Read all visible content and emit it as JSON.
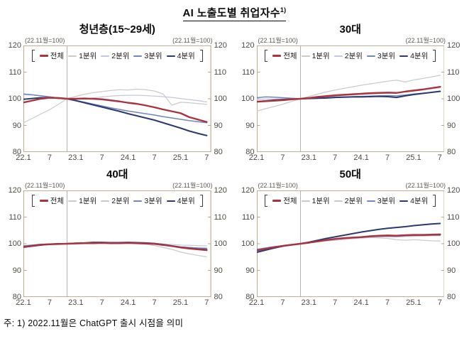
{
  "page_title": {
    "text": "AI 노출도별 취업자수",
    "superscript": "1)"
  },
  "footnote": "주: 1) 2022.11월은 ChatGPT 출시 시점을 의미",
  "colors": {
    "series": [
      "#aa3340",
      "#cbcbcb",
      "#c3c8df",
      "#7286bc",
      "#2c3a70"
    ],
    "frame": "#b7a889",
    "event_line": "#b3b3b3",
    "axis_text": "#4e4a42",
    "note_text": "#5e5a52"
  },
  "chart_data": {
    "type": "line",
    "index_note": "(22.11월=100)",
    "legend": [
      "전체",
      "1분위",
      "2분위",
      "3분위",
      "4분위"
    ],
    "line_widths": [
      2.4,
      1.2,
      1.2,
      1.6,
      2.0
    ],
    "draw_order": [
      1,
      2,
      3,
      4,
      0
    ],
    "x_axis": {
      "months_from_2022_01": [
        0,
        2,
        4,
        6,
        8,
        10,
        12,
        14,
        16,
        18,
        20,
        22,
        24,
        26,
        28,
        30,
        32,
        34,
        36,
        38,
        40,
        42
      ],
      "tick_months": [
        0,
        6,
        12,
        18,
        24,
        30,
        36,
        42
      ],
      "tick_labels": [
        "22.1",
        "7",
        "23.1",
        "7",
        "24.1",
        "7",
        "25.1",
        "7"
      ],
      "domain_max_month": 43
    },
    "y_axis": {
      "min": 80,
      "max": 120,
      "ticks": [
        120,
        110,
        100,
        90,
        80
      ]
    },
    "event_line": {
      "month": 10
    },
    "panels": [
      {
        "title": "청년층(15~29세)",
        "series": [
          {
            "name": "전체",
            "values": [
              98.6,
              99.3,
              100.0,
              100.4,
              100.3,
              100,
              100.0,
              100.1,
              100.0,
              99.8,
              99.4,
              99.0,
              98.5,
              98.1,
              97.5,
              96.8,
              96.0,
              95.3,
              94.6,
              93.1,
              92.2,
              91.3
            ]
          },
          {
            "name": "1분위",
            "values": [
              91.0,
              92.6,
              94.3,
              95.9,
              97.9,
              100,
              100.9,
              101.7,
              102.3,
              102.7,
              103.1,
              103.4,
              103.3,
              103.6,
              103.4,
              102.9,
              101.8,
              97.6,
              98.7,
              98.5,
              98.2,
              97.9
            ]
          },
          {
            "name": "2분위",
            "values": [
              101.5,
              101.4,
              101.2,
              100.8,
              100.3,
              100,
              99.8,
              100.0,
              100.3,
              100.7,
              101.0,
              101.2,
              101.3,
              101.3,
              101.2,
              101.0,
              100.8,
              100.5,
              100.1,
              99.7,
              99.3,
              98.8
            ]
          },
          {
            "name": "3분위",
            "values": [
              101.8,
              101.5,
              101.1,
              100.7,
              100.3,
              100,
              99.4,
              98.7,
              98.0,
              97.3,
              96.6,
              96.0,
              95.4,
              94.9,
              94.4,
              93.9,
              93.3,
              92.8,
              92.3,
              91.8,
              91.4,
              91.0
            ]
          },
          {
            "name": "4분위",
            "values": [
              99.8,
              100.1,
              100.4,
              100.4,
              100.2,
              100,
              99.3,
              98.5,
              97.7,
              96.9,
              96.1,
              95.3,
              94.4,
              93.6,
              92.8,
              92.0,
              91.0,
              90.0,
              89.0,
              87.9,
              87.0,
              86.2
            ]
          }
        ]
      },
      {
        "title": "30대",
        "series": [
          {
            "name": "전체",
            "values": [
              98.9,
              99.1,
              99.3,
              99.5,
              99.8,
              100,
              100.3,
              100.7,
              101.0,
              101.3,
              101.5,
              101.7,
              101.9,
              102.1,
              102.2,
              102.3,
              102.2,
              102.7,
              103.1,
              103.5,
              104.0,
              104.5
            ]
          },
          {
            "name": "1분위",
            "values": [
              95.4,
              96.3,
              97.1,
              98.0,
              99.0,
              100,
              100.9,
              101.8,
              102.6,
              103.3,
              103.9,
              104.5,
              105.1,
              105.6,
              106.1,
              106.6,
              107.0,
              106.3,
              107.1,
              107.6,
              108.2,
              108.8
            ]
          },
          {
            "name": "2분위",
            "values": [
              99.8,
              99.9,
              99.9,
              100.0,
              100.0,
              100,
              100.2,
              100.4,
              100.7,
              101.0,
              101.3,
              101.5,
              101.6,
              101.8,
              101.9,
              102.1,
              102.3,
              102.6,
              102.9,
              103.3,
              103.7,
              104.1
            ]
          },
          {
            "name": "3분위",
            "values": [
              100.4,
              100.7,
              100.6,
              100.4,
              100.2,
              100,
              100.1,
              100.2,
              100.4,
              100.6,
              100.7,
              100.8,
              100.9,
              101.0,
              101.1,
              101.2,
              101.1,
              101.4,
              101.8,
              102.1,
              102.4,
              102.7
            ]
          },
          {
            "name": "4분위",
            "values": [
              98.9,
              99.2,
              99.5,
              99.7,
              99.9,
              100,
              100.1,
              100.2,
              100.3,
              100.5,
              100.6,
              100.7,
              100.7,
              100.8,
              100.9,
              100.8,
              100.5,
              101.1,
              101.6,
              102.0,
              102.4,
              102.8
            ]
          }
        ]
      },
      {
        "title": "40대",
        "series": [
          {
            "name": "전체",
            "values": [
              98.8,
              99.2,
              99.6,
              99.8,
              99.9,
              100,
              100.1,
              100.2,
              100.2,
              100.3,
              100.2,
              100.2,
              100.3,
              100.2,
              100.1,
              100.0,
              99.6,
              99.1,
              98.6,
              98.2,
              97.9,
              97.6
            ]
          },
          {
            "name": "1분위",
            "values": [
              98.5,
              99.0,
              99.4,
              99.7,
              99.9,
              100,
              100.1,
              100.2,
              100.3,
              100.3,
              100.2,
              100.1,
              100.2,
              100.0,
              99.8,
              99.3,
              98.6,
              97.9,
              96.9,
              96.2,
              95.6,
              95.1
            ]
          },
          {
            "name": "2분위",
            "values": [
              99.0,
              99.4,
              99.7,
              99.9,
              100.0,
              100,
              100.1,
              100.3,
              100.4,
              100.4,
              100.3,
              100.3,
              100.4,
              100.3,
              100.2,
              100.1,
              99.9,
              99.7,
              99.5,
              99.4,
              99.3,
              99.2
            ]
          },
          {
            "name": "3분위",
            "values": [
              99.2,
              99.5,
              99.8,
              99.9,
              100.0,
              100,
              100.1,
              100.2,
              100.3,
              100.2,
              100.2,
              100.1,
              100.2,
              100.1,
              100.0,
              99.8,
              99.4,
              99.1,
              98.8,
              98.6,
              98.4,
              98.3
            ]
          },
          {
            "name": "4분위",
            "values": [
              98.7,
              99.1,
              99.5,
              99.8,
              100.0,
              100,
              100.2,
              100.3,
              100.5,
              100.5,
              100.4,
              100.4,
              100.5,
              100.4,
              100.3,
              100.1,
              99.7,
              99.2,
              98.7,
              98.3,
              98.0,
              97.8
            ]
          }
        ]
      },
      {
        "title": "50대",
        "series": [
          {
            "name": "전체",
            "values": [
              97.5,
              98.1,
              98.7,
              99.2,
              99.6,
              100,
              100.4,
              100.9,
              101.4,
              101.8,
              102.1,
              102.3,
              102.5,
              102.8,
              103.0,
              103.1,
              103.0,
              103.2,
              103.3,
              103.3,
              103.4,
              103.5
            ]
          },
          {
            "name": "1분위",
            "values": [
              97.8,
              98.4,
              98.9,
              99.3,
              99.7,
              100,
              100.3,
              100.7,
              101.0,
              101.3,
              101.6,
              101.9,
              102.1,
              102.3,
              102.2,
              102.0,
              101.5,
              101.3,
              101.5,
              101.3,
              101.1,
              101.0
            ]
          },
          {
            "name": "2분위",
            "values": [
              97.2,
              97.9,
              98.5,
              99.1,
              99.6,
              100,
              100.4,
              100.8,
              101.2,
              101.5,
              101.8,
              102.0,
              102.2,
              102.4,
              102.5,
              102.6,
              102.5,
              102.7,
              102.8,
              102.9,
              103.0,
              103.0
            ]
          },
          {
            "name": "3분위",
            "values": [
              97.9,
              98.4,
              98.9,
              99.3,
              99.7,
              100,
              100.4,
              100.9,
              101.3,
              101.7,
              102.0,
              102.2,
              102.4,
              102.6,
              102.8,
              102.9,
              102.8,
              103.0,
              103.1,
              103.1,
              103.2,
              103.2
            ]
          },
          {
            "name": "4분위",
            "values": [
              96.8,
              97.6,
              98.4,
              99.1,
              99.6,
              100,
              100.6,
              101.3,
              102.0,
              102.6,
              103.2,
              103.8,
              104.4,
              104.9,
              105.4,
              105.8,
              106.1,
              106.4,
              106.8,
              107.1,
              107.4,
              107.6
            ]
          }
        ]
      }
    ]
  }
}
